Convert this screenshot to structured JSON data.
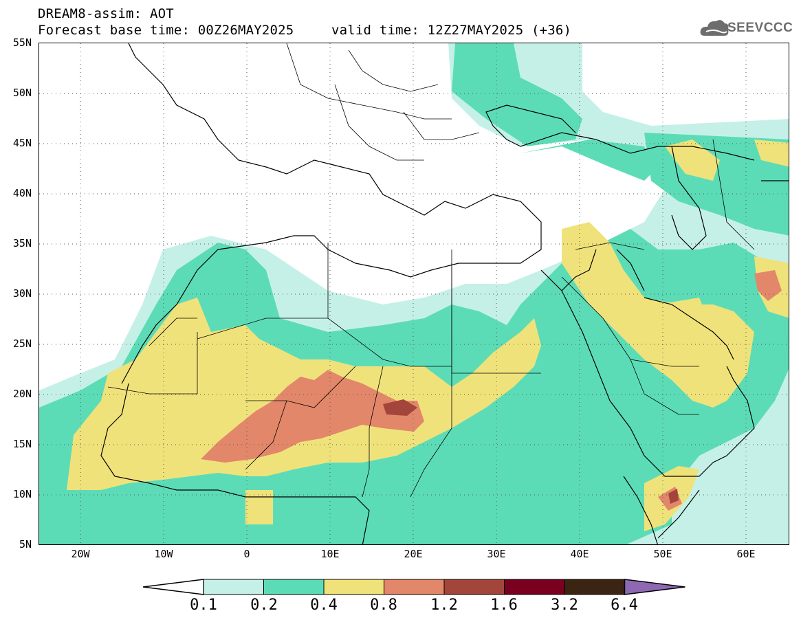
{
  "header": {
    "title": "DREAM8-assim: AOT",
    "base_time": "Forecast base time: 00Z26MAY2025",
    "valid_time": "valid time: 12Z27MAY2025 (+36)"
  },
  "logo": {
    "text": "SEEVCCC",
    "icon": "cloud-icon"
  },
  "map": {
    "lon_range": [
      -25,
      65
    ],
    "lat_range": [
      5,
      55
    ],
    "lat_ticks": [
      "55N",
      "50N",
      "45N",
      "40N",
      "35N",
      "30N",
      "25N",
      "20N",
      "15N",
      "10N",
      "5N"
    ],
    "lon_ticks": [
      "20W",
      "10W",
      "0",
      "10E",
      "20E",
      "30E",
      "40E",
      "50E",
      "60E"
    ],
    "gridlines": "dotted"
  },
  "colorbar": {
    "labels": [
      "0.1",
      "0.2",
      "0.4",
      "0.8",
      "1.2",
      "1.6",
      "3.2",
      "6.4"
    ],
    "colors": [
      "#ffffff",
      "#c5f0e8",
      "#5cdcb6",
      "#f0e27a",
      "#e2876a",
      "#a3453a",
      "#7a0020",
      "#3c2412",
      "#8f68b2"
    ]
  },
  "colors": {
    "cyan": "#c5f0e8",
    "green": "#5cdcb6",
    "yellow": "#f0e27a",
    "orange": "#e2876a",
    "brown": "#a3453a"
  }
}
